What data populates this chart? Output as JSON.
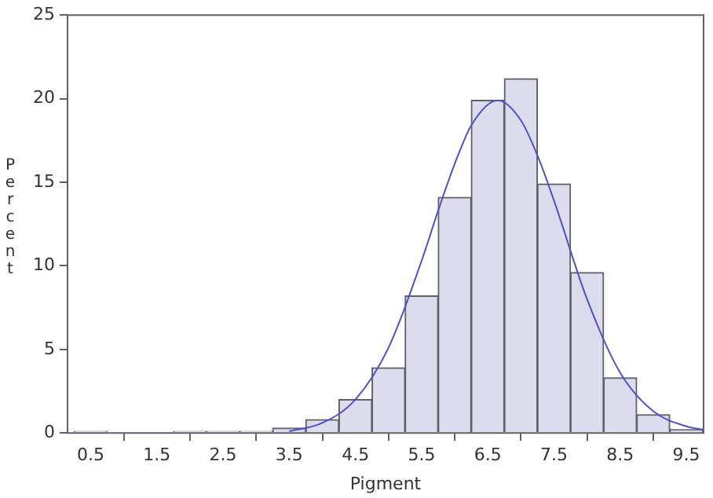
{
  "chart_data": {
    "type": "histogram",
    "xlabel": "Pigment",
    "ylabel": "Percent",
    "bins": [
      0.25,
      0.75,
      1.25,
      1.75,
      2.25,
      2.75,
      3.25,
      3.75,
      4.25,
      4.75,
      5.25,
      5.75,
      6.25,
      6.75,
      7.25,
      7.75,
      8.25,
      8.75,
      9.25,
      9.75
    ],
    "values": [
      0.1,
      0,
      0,
      0.1,
      0.1,
      0.1,
      0.3,
      0.8,
      2.0,
      3.9,
      8.2,
      14.1,
      19.9,
      21.2,
      14.9,
      9.6,
      3.3,
      1.1,
      0.2
    ],
    "color": "#dcdcec",
    "series": [
      {
        "type": "line",
        "color": "#5050c8",
        "x": [
          3.5,
          4.0,
          4.5,
          5.0,
          5.5,
          5.75,
          6.0,
          6.25,
          6.65,
          7.0,
          7.25,
          7.5,
          8.0,
          8.5,
          9.0,
          9.5,
          9.75
        ],
        "values": [
          0.1,
          0.6,
          2.0,
          5.1,
          10.3,
          13.3,
          16.1,
          18.4,
          19.9,
          18.7,
          16.6,
          13.9,
          8.0,
          3.6,
          1.3,
          0.4,
          0.2
        ]
      }
    ],
    "marker": "none",
    "line_style": "solid",
    "xlim": [
      0.15,
      9.76
    ],
    "ylim": [
      0,
      25
    ],
    "xticks": [
      0.5,
      1.5,
      2.5,
      3.5,
      4.5,
      5.5,
      6.5,
      7.5,
      8.5,
      9.5
    ],
    "yticks": [
      0,
      5,
      10,
      15,
      20,
      25
    ],
    "grid": false,
    "legend": false
  }
}
